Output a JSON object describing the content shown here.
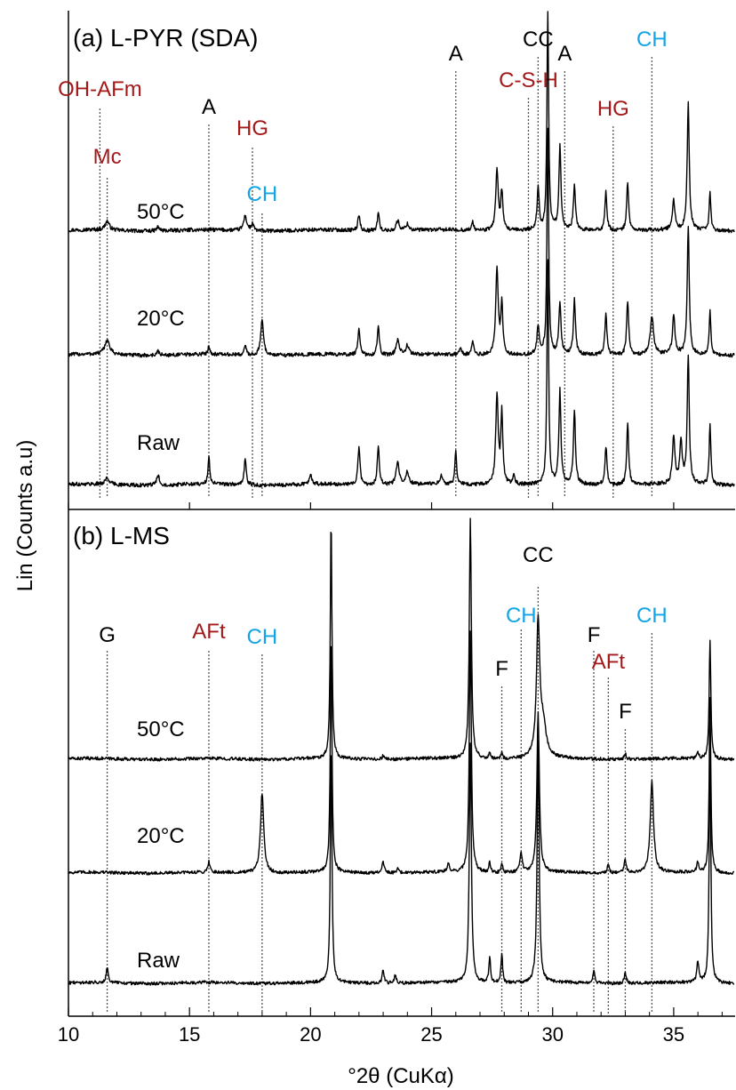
{
  "chart_data": {
    "type": "line",
    "xlabel": "°2θ (CuKα)",
    "ylabel": "Lin (Counts a.u)",
    "xlim": [
      10,
      37.5
    ],
    "xticks": [
      10,
      15,
      20,
      25,
      30,
      35
    ],
    "colors": {
      "black": "#000000",
      "red": "#a3191a",
      "blue": "#12a4e6"
    },
    "panels": [
      {
        "title": "(a) L-PYR (SDA)",
        "series": [
          {
            "name": "50°C",
            "baseline": 0.0,
            "peaks": [
              [
                11.6,
                0.28,
                0.1
              ],
              [
                13.7,
                0.12,
                0.07
              ],
              [
                17.3,
                0.45,
                0.08
              ],
              [
                17.6,
                0.2,
                0.06
              ],
              [
                22.0,
                0.5,
                0.05
              ],
              [
                22.8,
                0.55,
                0.05
              ],
              [
                23.6,
                0.3,
                0.08
              ],
              [
                24.0,
                0.2,
                0.08
              ],
              [
                26.7,
                0.25,
                0.05
              ],
              [
                27.7,
                1.9,
                0.06
              ],
              [
                27.9,
                1.2,
                0.05
              ],
              [
                29.4,
                1.3,
                0.05
              ],
              [
                29.8,
                7.0,
                0.04
              ],
              [
                30.3,
                2.6,
                0.05
              ],
              [
                30.9,
                1.4,
                0.05
              ],
              [
                32.2,
                1.2,
                0.05
              ],
              [
                33.1,
                1.5,
                0.05
              ],
              [
                35.0,
                0.9,
                0.06
              ],
              [
                35.6,
                4.0,
                0.05
              ],
              [
                36.5,
                1.2,
                0.04
              ]
            ]
          },
          {
            "name": "20°C",
            "baseline": 0.0,
            "peaks": [
              [
                11.6,
                0.45,
                0.12
              ],
              [
                13.7,
                0.12,
                0.07
              ],
              [
                15.8,
                0.3,
                0.04
              ],
              [
                17.3,
                0.3,
                0.05
              ],
              [
                18.0,
                1.1,
                0.07
              ],
              [
                22.0,
                0.8,
                0.05
              ],
              [
                22.8,
                0.9,
                0.05
              ],
              [
                23.6,
                0.45,
                0.08
              ],
              [
                24.0,
                0.3,
                0.08
              ],
              [
                26.2,
                0.2,
                0.05
              ],
              [
                26.7,
                0.4,
                0.05
              ],
              [
                27.7,
                2.7,
                0.06
              ],
              [
                27.9,
                1.6,
                0.05
              ],
              [
                29.4,
                0.9,
                0.05
              ],
              [
                29.8,
                7.0,
                0.04
              ],
              [
                30.3,
                1.6,
                0.05
              ],
              [
                30.9,
                1.7,
                0.05
              ],
              [
                32.2,
                1.3,
                0.05
              ],
              [
                33.1,
                1.7,
                0.05
              ],
              [
                34.1,
                1.2,
                0.08
              ],
              [
                35.0,
                1.2,
                0.06
              ],
              [
                35.6,
                4.0,
                0.05
              ],
              [
                36.5,
                1.4,
                0.04
              ]
            ]
          },
          {
            "name": "Raw",
            "baseline": 0.0,
            "peaks": [
              [
                11.6,
                0.2,
                0.1
              ],
              [
                13.7,
                0.3,
                0.07
              ],
              [
                15.8,
                0.9,
                0.04
              ],
              [
                17.3,
                0.8,
                0.05
              ],
              [
                20.0,
                0.3,
                0.06
              ],
              [
                22.0,
                1.2,
                0.05
              ],
              [
                22.8,
                1.2,
                0.05
              ],
              [
                23.6,
                0.7,
                0.08
              ],
              [
                24.0,
                0.4,
                0.08
              ],
              [
                25.4,
                0.3,
                0.05
              ],
              [
                26.0,
                1.1,
                0.04
              ],
              [
                27.7,
                2.8,
                0.06
              ],
              [
                27.9,
                2.2,
                0.05
              ],
              [
                28.4,
                0.3,
                0.05
              ],
              [
                29.8,
                7.0,
                0.04
              ],
              [
                30.3,
                2.9,
                0.05
              ],
              [
                30.9,
                2.3,
                0.05
              ],
              [
                32.2,
                1.2,
                0.05
              ],
              [
                33.1,
                1.9,
                0.05
              ],
              [
                35.0,
                1.5,
                0.06
              ],
              [
                35.3,
                1.3,
                0.06
              ],
              [
                35.6,
                4.0,
                0.05
              ],
              [
                36.5,
                1.9,
                0.04
              ]
            ]
          }
        ],
        "annotations": [
          {
            "text": "OH-AFm",
            "x": 11.3,
            "color": "red"
          },
          {
            "text": "Mc",
            "x": 11.6,
            "color": "red"
          },
          {
            "text": "A",
            "x": 15.8,
            "color": "black"
          },
          {
            "text": "HG",
            "x": 17.6,
            "color": "red"
          },
          {
            "text": "CH",
            "x": 18.0,
            "color": "blue"
          },
          {
            "text": "A",
            "x": 26.0,
            "color": "black"
          },
          {
            "text": "C-S-H",
            "x": 29.0,
            "color": "red"
          },
          {
            "text": "CC",
            "x": 29.4,
            "color": "black"
          },
          {
            "text": "A",
            "x": 30.5,
            "color": "black"
          },
          {
            "text": "HG",
            "x": 32.5,
            "color": "red"
          },
          {
            "text": "CH",
            "x": 34.1,
            "color": "blue"
          }
        ]
      },
      {
        "title": "(b) L-MS",
        "series": [
          {
            "name": "50°C",
            "baseline": 0.0,
            "peaks": [
              [
                20.85,
                9.0,
                0.04
              ],
              [
                23.0,
                0.15,
                0.05
              ],
              [
                26.6,
                9.0,
                0.05
              ],
              [
                27.4,
                0.25,
                0.04
              ],
              [
                27.9,
                0.25,
                0.04
              ],
              [
                29.4,
                5.0,
                0.08
              ],
              [
                29.6,
                1.2,
                0.15
              ],
              [
                33.0,
                0.2,
                0.05
              ],
              [
                36.0,
                0.2,
                0.05
              ],
              [
                36.5,
                4.5,
                0.04
              ]
            ]
          },
          {
            "name": "20°C",
            "baseline": 0.0,
            "peaks": [
              [
                15.8,
                0.4,
                0.05
              ],
              [
                18.0,
                3.0,
                0.08
              ],
              [
                20.85,
                9.0,
                0.04
              ],
              [
                23.0,
                0.4,
                0.06
              ],
              [
                23.6,
                0.2,
                0.05
              ],
              [
                25.7,
                0.3,
                0.06
              ],
              [
                26.6,
                9.0,
                0.05
              ],
              [
                27.4,
                0.4,
                0.04
              ],
              [
                27.9,
                0.4,
                0.04
              ],
              [
                28.7,
                0.7,
                0.06
              ],
              [
                29.4,
                6.0,
                0.06
              ],
              [
                32.3,
                0.3,
                0.05
              ],
              [
                33.0,
                0.5,
                0.05
              ],
              [
                34.1,
                3.4,
                0.08
              ],
              [
                36.0,
                0.4,
                0.05
              ],
              [
                36.5,
                6.5,
                0.04
              ]
            ]
          },
          {
            "name": "Raw",
            "baseline": 0.0,
            "peaks": [
              [
                11.6,
                0.6,
                0.05
              ],
              [
                20.85,
                9.0,
                0.04
              ],
              [
                23.0,
                0.5,
                0.05
              ],
              [
                23.5,
                0.3,
                0.05
              ],
              [
                26.6,
                9.0,
                0.05
              ],
              [
                27.4,
                1.0,
                0.04
              ],
              [
                27.9,
                1.1,
                0.04
              ],
              [
                29.4,
                9.0,
                0.05
              ],
              [
                31.7,
                0.5,
                0.04
              ],
              [
                33.0,
                0.4,
                0.05
              ],
              [
                36.0,
                0.8,
                0.05
              ],
              [
                36.5,
                9.0,
                0.04
              ]
            ]
          }
        ],
        "annotations": [
          {
            "text": "G",
            "x": 11.6,
            "color": "black"
          },
          {
            "text": "AFt",
            "x": 15.8,
            "color": "red"
          },
          {
            "text": "CH",
            "x": 18.0,
            "color": "blue"
          },
          {
            "text": "F",
            "x": 27.9,
            "color": "black"
          },
          {
            "text": "CH",
            "x": 28.7,
            "color": "blue"
          },
          {
            "text": "CC",
            "x": 29.4,
            "color": "black"
          },
          {
            "text": "F",
            "x": 31.7,
            "color": "black"
          },
          {
            "text": "AFt",
            "x": 32.3,
            "color": "red"
          },
          {
            "text": "F",
            "x": 33.0,
            "color": "black"
          },
          {
            "text": "CH",
            "x": 34.1,
            "color": "blue"
          }
        ]
      }
    ]
  }
}
